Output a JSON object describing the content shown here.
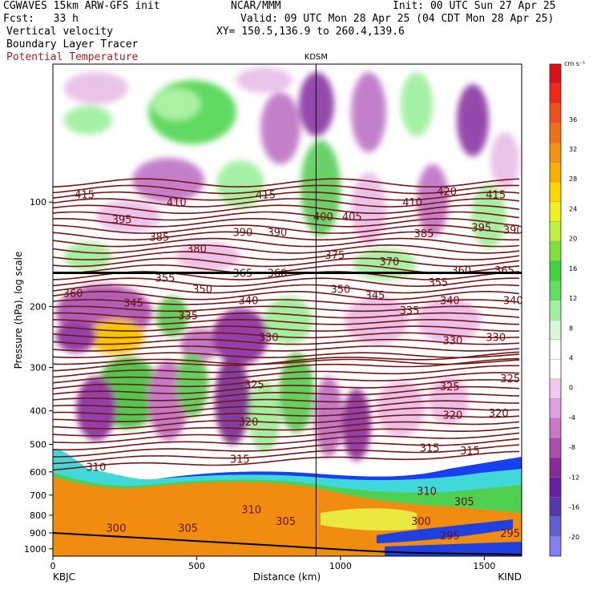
{
  "header": {
    "model": "CGWAVES 15km ARW-GFS init",
    "forecast": "Fcst:   33 h",
    "center": "NCAR/MMM",
    "init": "Init: 00 UTC Sun 27 Apr 25",
    "valid": "Valid: 09 UTC Mon 28 Apr 25 (04 CDT Mon 28 Apr 25)",
    "xy": "XY= 150.5,136.9 to 260.4,139.6",
    "field1": "Vertical velocity",
    "field2": "Boundary Layer Tracer",
    "field3": "Potential Temperature",
    "field3_color": "#b02020"
  },
  "chart_data": {
    "type": "heatmap",
    "ylabel": "Pressure (hPa), log scale",
    "xlabel": "Distance (km)",
    "x_ticks": [
      0,
      500,
      1000,
      1500
    ],
    "x_range": [
      0,
      1630
    ],
    "y_ticks": [
      100,
      200,
      300,
      400,
      500,
      600,
      700,
      800,
      900,
      1000
    ],
    "y_log": true,
    "station_left": "KBJC",
    "station_right": "KIND",
    "station_marker": "KDSM",
    "station_marker_km": 915,
    "tropopause_pressure": 160,
    "colorbar": {
      "units": "cm s⁻¹",
      "labels": [
        36,
        32,
        28,
        24,
        20,
        16,
        12,
        8,
        4,
        0,
        -4,
        -8,
        -12,
        -16,
        -20
      ],
      "colors": [
        "#e0101a",
        "#f02818",
        "#f05020",
        "#f07018",
        "#f59010",
        "#f8b000",
        "#ffd800",
        "#f0f020",
        "#c0f040",
        "#80e040",
        "#40d040",
        "#60e060",
        "#a0f0a0",
        "#d8f8d8",
        "#ffffff",
        "#ffffff",
        "#f0c8f0",
        "#e0a0e0",
        "#c878c8",
        "#a850b0",
        "#882a98",
        "#6820a0",
        "#5838b0",
        "#6060d0",
        "#8080f0"
      ]
    },
    "theta_labels": [
      {
        "v": "415",
        "x": 110,
        "p": 95
      },
      {
        "v": "410",
        "x": 430,
        "p": 100
      },
      {
        "v": "415",
        "x": 740,
        "p": 95
      },
      {
        "v": "420",
        "x": 1370,
        "p": 93
      },
      {
        "v": "415",
        "x": 1540,
        "p": 95
      },
      {
        "v": "410",
        "x": 1250,
        "p": 100
      },
      {
        "v": "405",
        "x": 1040,
        "p": 110
      },
      {
        "v": "400",
        "x": 940,
        "p": 110
      },
      {
        "v": "395",
        "x": 240,
        "p": 112
      },
      {
        "v": "385",
        "x": 370,
        "p": 126
      },
      {
        "v": "380",
        "x": 500,
        "p": 136
      },
      {
        "v": "390",
        "x": 660,
        "p": 122
      },
      {
        "v": "390",
        "x": 780,
        "p": 122
      },
      {
        "v": "385",
        "x": 1290,
        "p": 123
      },
      {
        "v": "395",
        "x": 1490,
        "p": 118
      },
      {
        "v": "390",
        "x": 1600,
        "p": 120
      },
      {
        "v": "375",
        "x": 980,
        "p": 142
      },
      {
        "v": "370",
        "x": 1170,
        "p": 148
      },
      {
        "v": "355",
        "x": 390,
        "p": 165
      },
      {
        "v": "365",
        "x": 660,
        "p": 160
      },
      {
        "v": "360",
        "x": 780,
        "p": 160
      },
      {
        "v": "360",
        "x": 1420,
        "p": 157
      },
      {
        "v": "365",
        "x": 1570,
        "p": 157
      },
      {
        "v": "355",
        "x": 1340,
        "p": 170
      },
      {
        "v": "360",
        "x": 70,
        "p": 183
      },
      {
        "v": "350",
        "x": 520,
        "p": 178
      },
      {
        "v": "350",
        "x": 1000,
        "p": 178
      },
      {
        "v": "345",
        "x": 1120,
        "p": 185
      },
      {
        "v": "345",
        "x": 280,
        "p": 195
      },
      {
        "v": "340",
        "x": 680,
        "p": 192
      },
      {
        "v": "340",
        "x": 1380,
        "p": 192
      },
      {
        "v": "340",
        "x": 1600,
        "p": 192
      },
      {
        "v": "335",
        "x": 470,
        "p": 212
      },
      {
        "v": "335",
        "x": 1240,
        "p": 205
      },
      {
        "v": "330",
        "x": 750,
        "p": 245
      },
      {
        "v": "330",
        "x": 1390,
        "p": 250
      },
      {
        "v": "330",
        "x": 1540,
        "p": 245
      },
      {
        "v": "325",
        "x": 700,
        "p": 335
      },
      {
        "v": "325",
        "x": 1380,
        "p": 340
      },
      {
        "v": "325",
        "x": 1590,
        "p": 322
      },
      {
        "v": "320",
        "x": 680,
        "p": 430
      },
      {
        "v": "320",
        "x": 1390,
        "p": 410
      },
      {
        "v": "320",
        "x": 1550,
        "p": 405
      },
      {
        "v": "315",
        "x": 650,
        "p": 550
      },
      {
        "v": "315",
        "x": 1310,
        "p": 510
      },
      {
        "v": "315",
        "x": 1450,
        "p": 520
      },
      {
        "v": "310",
        "x": 150,
        "p": 580
      },
      {
        "v": "310",
        "x": 690,
        "p": 770
      },
      {
        "v": "310",
        "x": 1300,
        "p": 680
      },
      {
        "v": "305",
        "x": 470,
        "p": 870
      },
      {
        "v": "305",
        "x": 810,
        "p": 830
      },
      {
        "v": "305",
        "x": 1430,
        "p": 730
      },
      {
        "v": "300",
        "x": 220,
        "p": 870
      },
      {
        "v": "300",
        "x": 1280,
        "p": 830
      },
      {
        "v": "295",
        "x": 1380,
        "p": 915
      },
      {
        "v": "295",
        "x": 1590,
        "p": 900
      }
    ]
  }
}
